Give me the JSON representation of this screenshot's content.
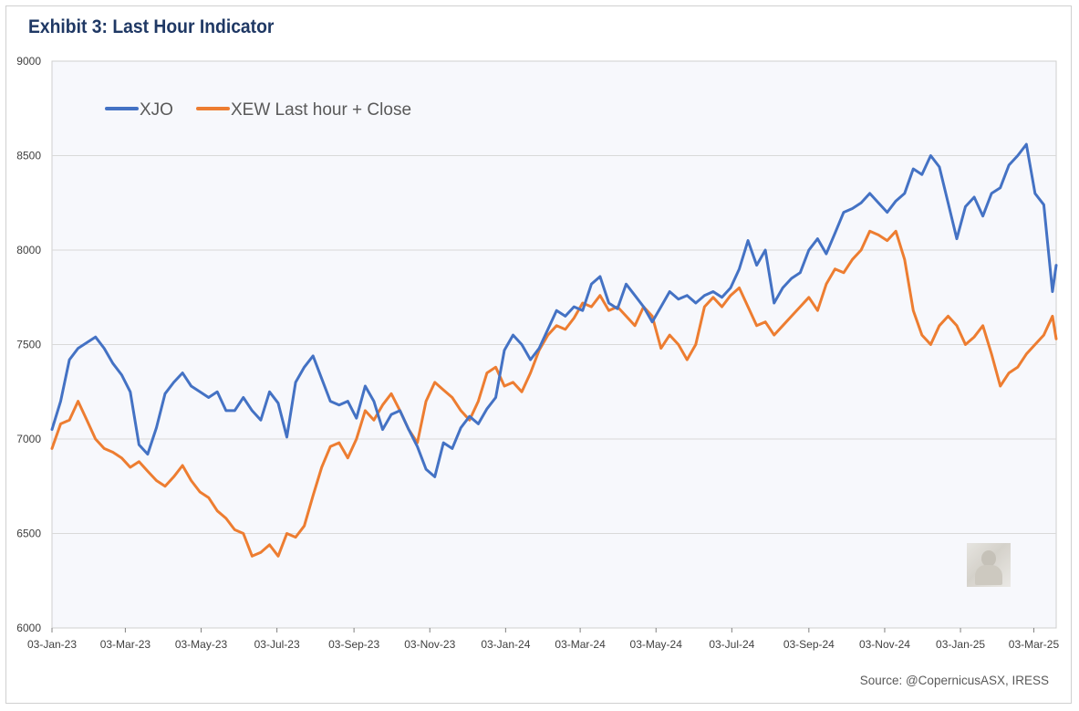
{
  "title": "Exhibit 3: Last Hour Indicator",
  "source": "Source: @CopernicusASX, IRESS",
  "chart_data": {
    "type": "line",
    "title": "Exhibit 3: Last Hour Indicator",
    "xlabel": "",
    "ylabel": "",
    "ylim": [
      6000,
      9000
    ],
    "yticks": [
      6000,
      6500,
      7000,
      7500,
      8000,
      8500,
      9000
    ],
    "xlim": [
      "2023-01-03",
      "2025-03-21"
    ],
    "xticks": [
      "03-Jan-23",
      "03-Mar-23",
      "03-May-23",
      "03-Jul-23",
      "03-Sep-23",
      "03-Nov-23",
      "03-Jan-24",
      "03-Mar-24",
      "03-May-24",
      "03-Jul-24",
      "03-Sep-24",
      "03-Nov-24",
      "03-Jan-25",
      "03-Mar-25"
    ],
    "xtick_dates": [
      "2023-01-03",
      "2023-03-03",
      "2023-05-03",
      "2023-07-03",
      "2023-09-03",
      "2023-11-03",
      "2024-01-03",
      "2024-03-03",
      "2024-05-03",
      "2024-07-03",
      "2024-09-03",
      "2024-11-03",
      "2025-01-03",
      "2025-03-03"
    ],
    "grid": "horizontal",
    "legend": "top-left",
    "colors": {
      "XJO": "#4472c4",
      "XEW": "#ed7d31",
      "plot_bg": "#f7f8fc",
      "grid": "#d9d9d9"
    },
    "series": [
      {
        "name": "XJO",
        "x": [
          "2023-01-03",
          "2023-01-10",
          "2023-01-17",
          "2023-01-24",
          "2023-01-31",
          "2023-02-07",
          "2023-02-14",
          "2023-02-21",
          "2023-02-28",
          "2023-03-07",
          "2023-03-14",
          "2023-03-21",
          "2023-03-28",
          "2023-04-04",
          "2023-04-11",
          "2023-04-18",
          "2023-04-25",
          "2023-05-02",
          "2023-05-09",
          "2023-05-16",
          "2023-05-23",
          "2023-05-30",
          "2023-06-06",
          "2023-06-13",
          "2023-06-20",
          "2023-06-27",
          "2023-07-04",
          "2023-07-11",
          "2023-07-18",
          "2023-07-25",
          "2023-08-01",
          "2023-08-08",
          "2023-08-15",
          "2023-08-22",
          "2023-08-29",
          "2023-09-05",
          "2023-09-12",
          "2023-09-19",
          "2023-09-26",
          "2023-10-03",
          "2023-10-10",
          "2023-10-17",
          "2023-10-24",
          "2023-10-31",
          "2023-11-07",
          "2023-11-14",
          "2023-11-21",
          "2023-11-28",
          "2023-12-05",
          "2023-12-12",
          "2023-12-19",
          "2023-12-26",
          "2024-01-02",
          "2024-01-09",
          "2024-01-16",
          "2024-01-23",
          "2024-01-30",
          "2024-02-06",
          "2024-02-13",
          "2024-02-20",
          "2024-02-27",
          "2024-03-05",
          "2024-03-12",
          "2024-03-19",
          "2024-03-26",
          "2024-04-02",
          "2024-04-09",
          "2024-04-16",
          "2024-04-23",
          "2024-04-30",
          "2024-05-07",
          "2024-05-14",
          "2024-05-21",
          "2024-05-28",
          "2024-06-04",
          "2024-06-11",
          "2024-06-18",
          "2024-06-25",
          "2024-07-02",
          "2024-07-09",
          "2024-07-16",
          "2024-07-23",
          "2024-07-30",
          "2024-08-06",
          "2024-08-13",
          "2024-08-20",
          "2024-08-27",
          "2024-09-03",
          "2024-09-10",
          "2024-09-17",
          "2024-09-24",
          "2024-10-01",
          "2024-10-08",
          "2024-10-15",
          "2024-10-22",
          "2024-10-29",
          "2024-11-05",
          "2024-11-12",
          "2024-11-19",
          "2024-11-26",
          "2024-12-03",
          "2024-12-10",
          "2024-12-17",
          "2024-12-24",
          "2024-12-31",
          "2025-01-07",
          "2025-01-14",
          "2025-01-21",
          "2025-01-28",
          "2025-02-04",
          "2025-02-11",
          "2025-02-18",
          "2025-02-25",
          "2025-03-04",
          "2025-03-11",
          "2025-03-18",
          "2025-03-21"
        ],
        "values": [
          7050,
          7200,
          7420,
          7480,
          7510,
          7540,
          7480,
          7400,
          7340,
          7250,
          6970,
          6920,
          7060,
          7240,
          7300,
          7350,
          7280,
          7250,
          7220,
          7250,
          7150,
          7150,
          7220,
          7150,
          7100,
          7250,
          7190,
          7010,
          7300,
          7380,
          7440,
          7320,
          7200,
          7180,
          7200,
          7110,
          7280,
          7200,
          7050,
          7130,
          7150,
          7050,
          6960,
          6840,
          6800,
          6980,
          6950,
          7060,
          7120,
          7080,
          7160,
          7220,
          7470,
          7550,
          7500,
          7420,
          7480,
          7580,
          7680,
          7650,
          7700,
          7680,
          7820,
          7860,
          7720,
          7690,
          7820,
          7760,
          7700,
          7620,
          7700,
          7780,
          7740,
          7760,
          7720,
          7760,
          7780,
          7750,
          7800,
          7900,
          8050,
          7920,
          8000,
          7720,
          7800,
          7850,
          7880,
          8000,
          8060,
          7980,
          8090,
          8200,
          8220,
          8250,
          8300,
          8250,
          8200,
          8260,
          8300,
          8430,
          8400,
          8500,
          8440,
          8250,
          8060,
          8230,
          8280,
          8180,
          8300,
          8330,
          8450,
          8500,
          8560,
          8300,
          8240,
          7780,
          7920
        ]
      },
      {
        "name": "XEW Last hour + Close",
        "x": [
          "2023-01-03",
          "2023-01-10",
          "2023-01-17",
          "2023-01-24",
          "2023-01-31",
          "2023-02-07",
          "2023-02-14",
          "2023-02-21",
          "2023-02-28",
          "2023-03-07",
          "2023-03-14",
          "2023-03-21",
          "2023-03-28",
          "2023-04-04",
          "2023-04-11",
          "2023-04-18",
          "2023-04-25",
          "2023-05-02",
          "2023-05-09",
          "2023-05-16",
          "2023-05-23",
          "2023-05-30",
          "2023-06-06",
          "2023-06-13",
          "2023-06-20",
          "2023-06-27",
          "2023-07-04",
          "2023-07-11",
          "2023-07-18",
          "2023-07-25",
          "2023-08-01",
          "2023-08-08",
          "2023-08-15",
          "2023-08-22",
          "2023-08-29",
          "2023-09-05",
          "2023-09-12",
          "2023-09-19",
          "2023-09-26",
          "2023-10-03",
          "2023-10-10",
          "2023-10-17",
          "2023-10-24",
          "2023-10-31",
          "2023-11-07",
          "2023-11-14",
          "2023-11-21",
          "2023-11-28",
          "2023-12-05",
          "2023-12-12",
          "2023-12-19",
          "2023-12-26",
          "2024-01-02",
          "2024-01-09",
          "2024-01-16",
          "2024-01-23",
          "2024-01-30",
          "2024-02-06",
          "2024-02-13",
          "2024-02-20",
          "2024-02-27",
          "2024-03-05",
          "2024-03-12",
          "2024-03-19",
          "2024-03-26",
          "2024-04-02",
          "2024-04-09",
          "2024-04-16",
          "2024-04-23",
          "2024-04-30",
          "2024-05-07",
          "2024-05-14",
          "2024-05-21",
          "2024-05-28",
          "2024-06-04",
          "2024-06-11",
          "2024-06-18",
          "2024-06-25",
          "2024-07-02",
          "2024-07-09",
          "2024-07-16",
          "2024-07-23",
          "2024-07-30",
          "2024-08-06",
          "2024-08-13",
          "2024-08-20",
          "2024-08-27",
          "2024-09-03",
          "2024-09-10",
          "2024-09-17",
          "2024-09-24",
          "2024-10-01",
          "2024-10-08",
          "2024-10-15",
          "2024-10-22",
          "2024-10-29",
          "2024-11-05",
          "2024-11-12",
          "2024-11-19",
          "2024-11-26",
          "2024-12-03",
          "2024-12-10",
          "2024-12-17",
          "2024-12-24",
          "2024-12-31",
          "2025-01-07",
          "2025-01-14",
          "2025-01-21",
          "2025-01-28",
          "2025-02-04",
          "2025-02-11",
          "2025-02-18",
          "2025-02-25",
          "2025-03-04",
          "2025-03-11",
          "2025-03-18",
          "2025-03-21"
        ],
        "values": [
          6950,
          7080,
          7100,
          7200,
          7100,
          7000,
          6950,
          6930,
          6900,
          6850,
          6880,
          6830,
          6780,
          6750,
          6800,
          6860,
          6780,
          6720,
          6690,
          6620,
          6580,
          6520,
          6500,
          6380,
          6400,
          6440,
          6380,
          6500,
          6480,
          6540,
          6700,
          6850,
          6960,
          6980,
          6900,
          7000,
          7150,
          7100,
          7180,
          7240,
          7150,
          7050,
          6980,
          7200,
          7300,
          7260,
          7220,
          7150,
          7100,
          7200,
          7350,
          7380,
          7280,
          7300,
          7250,
          7350,
          7470,
          7550,
          7600,
          7580,
          7640,
          7720,
          7700,
          7760,
          7680,
          7700,
          7650,
          7600,
          7700,
          7650,
          7480,
          7550,
          7500,
          7420,
          7500,
          7700,
          7750,
          7700,
          7760,
          7800,
          7700,
          7600,
          7620,
          7550,
          7600,
          7650,
          7700,
          7750,
          7680,
          7820,
          7900,
          7880,
          7950,
          8000,
          8100,
          8080,
          8050,
          8100,
          7950,
          7680,
          7550,
          7500,
          7600,
          7650,
          7600,
          7500,
          7540,
          7600,
          7450,
          7280,
          7350,
          7380,
          7450,
          7500,
          7550,
          7650,
          7530
        ]
      }
    ]
  }
}
